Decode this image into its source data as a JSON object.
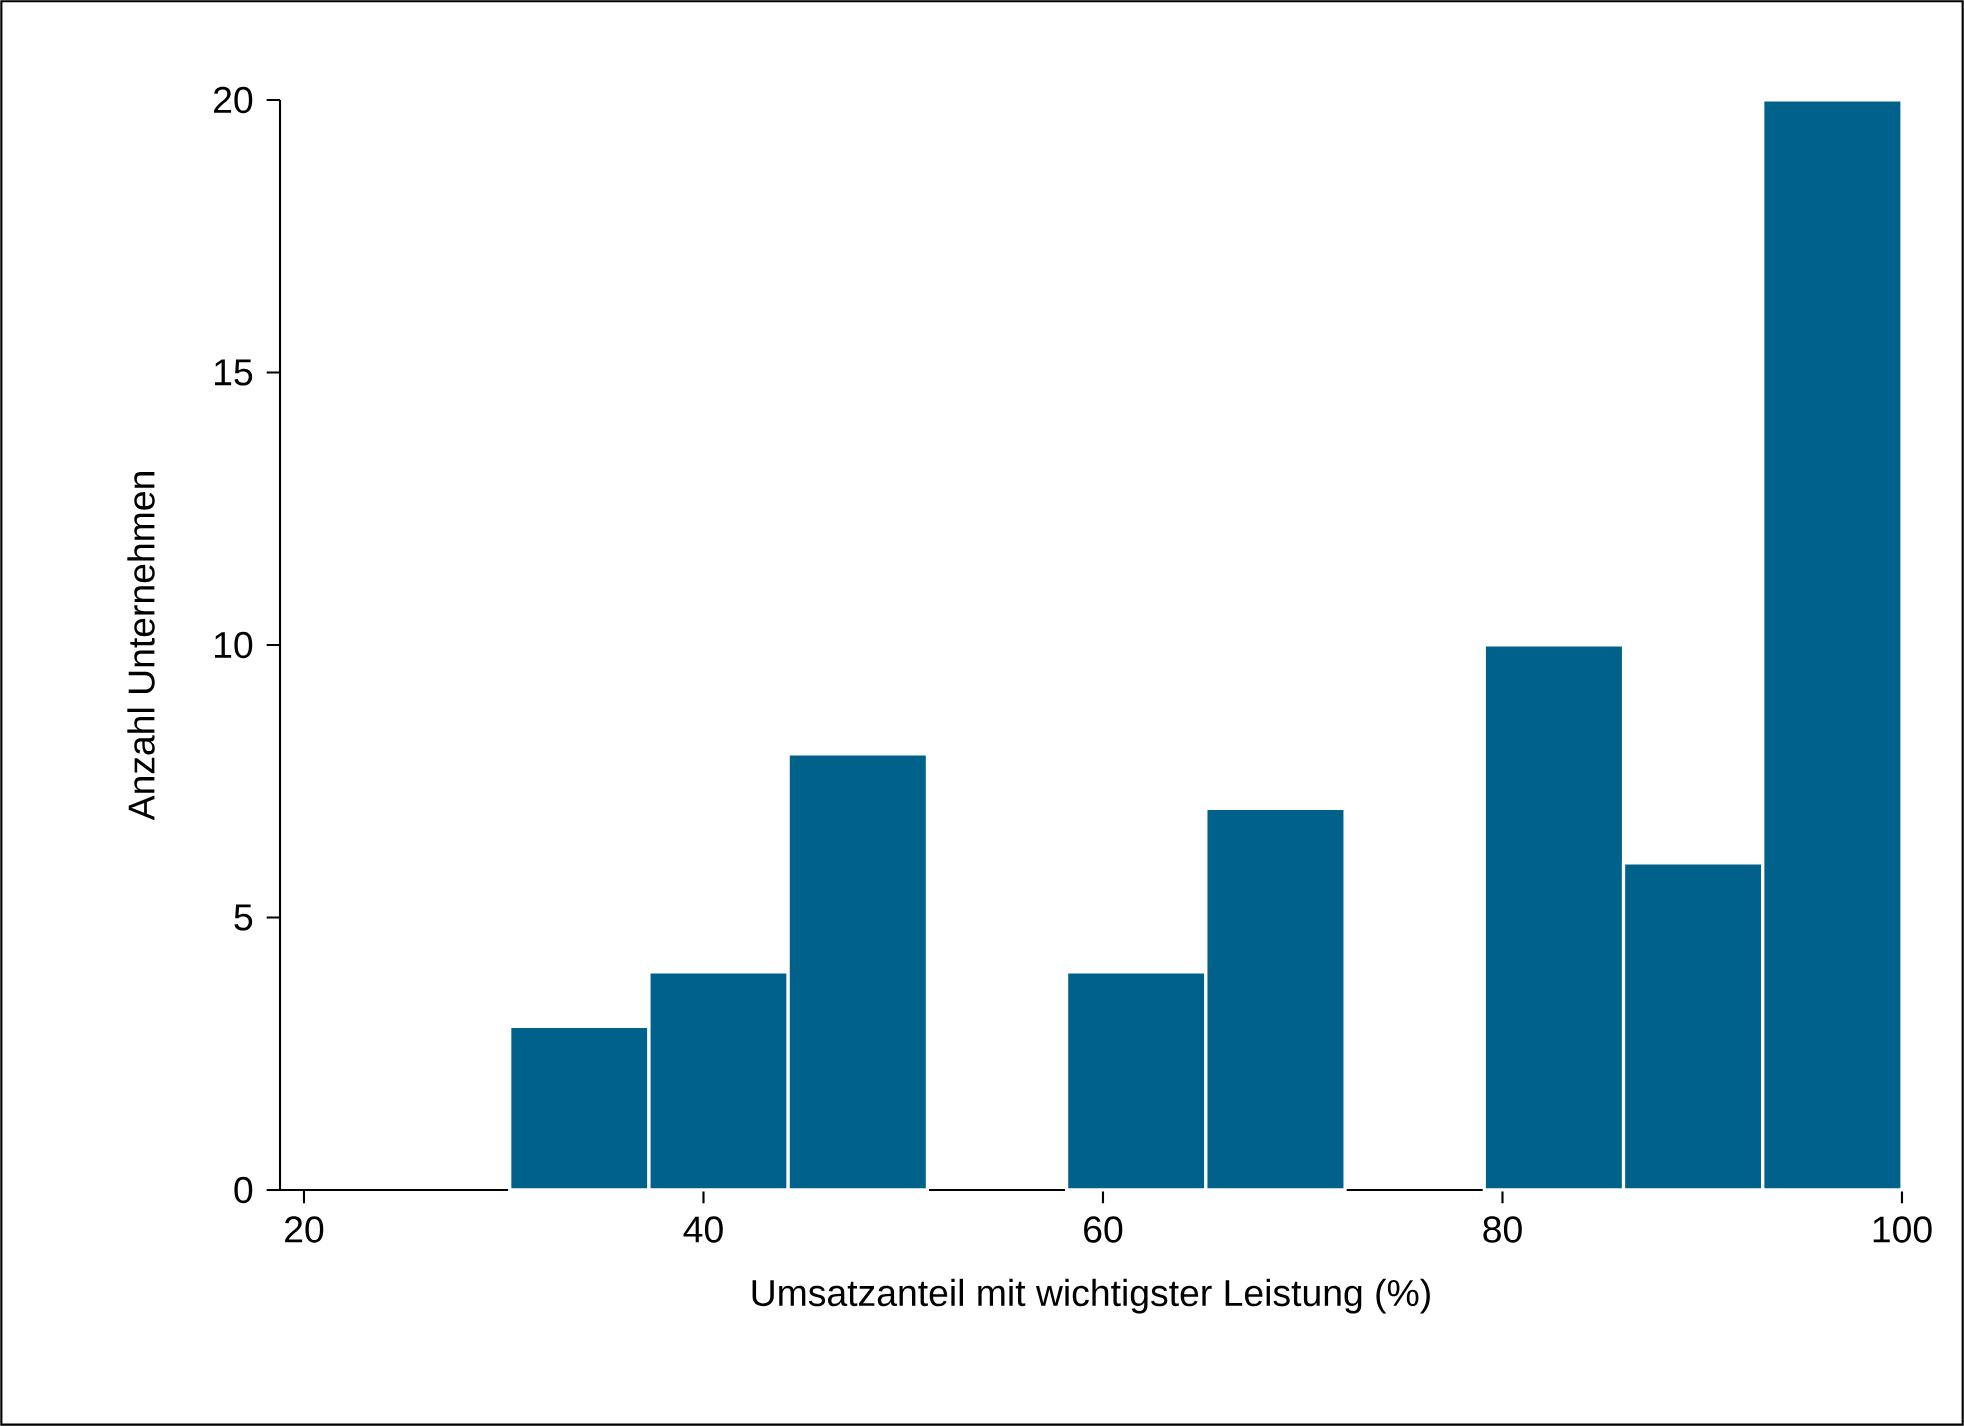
{
  "chart_data": {
    "type": "histogram",
    "xlabel": "Umsatzanteil mit wichtigster Leistung (%)",
    "ylabel": "Anzahl Unternehmen",
    "bins": [
      30.3,
      37.27,
      44.24,
      51.21,
      58.18,
      65.15,
      72.12,
      79.09,
      86.06,
      93.03,
      100
    ],
    "values": [
      3,
      4,
      8,
      0,
      4,
      7,
      0,
      10,
      6,
      20
    ],
    "color": "#00628b",
    "xlim": [
      18.8,
      100
    ],
    "ylim": [
      0,
      20
    ],
    "xticks": [
      20,
      40,
      60,
      80,
      100
    ],
    "yticks": [
      0,
      5,
      10,
      15,
      20
    ],
    "grid": false
  }
}
